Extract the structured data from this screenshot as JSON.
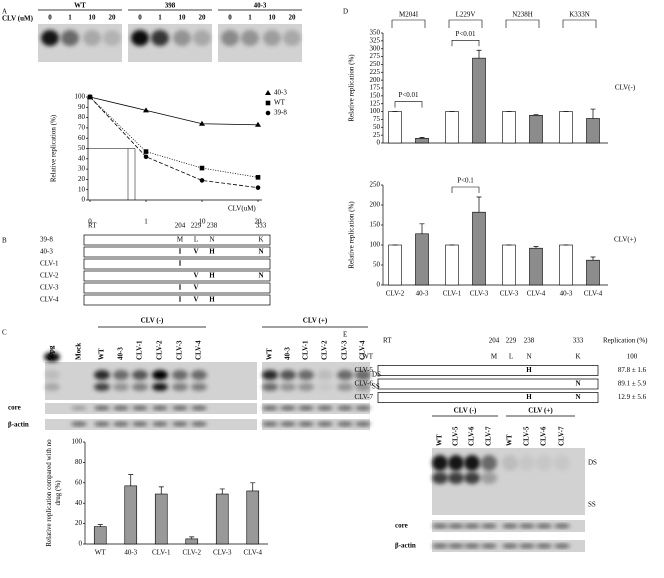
{
  "panel_labels": [
    "A",
    "B",
    "C",
    "D",
    "E"
  ],
  "blot_A": {
    "axis_label": "CLV (uM)",
    "groups": [
      {
        "name": "WT",
        "lanes": [
          "0",
          "1",
          "10",
          "20"
        ]
      },
      {
        "name": "398",
        "lanes": [
          "0",
          "1",
          "10",
          "20"
        ]
      },
      {
        "name": "40-3",
        "lanes": [
          "0",
          "1",
          "10",
          "20"
        ]
      }
    ]
  },
  "schematic_B": {
    "header": [
      "RT",
      "204",
      "229",
      "238",
      "333"
    ],
    "rows": [
      {
        "name": "39-8",
        "residues": [
          "M",
          "L",
          "N",
          "K"
        ]
      },
      {
        "name": "40-3",
        "residues": [
          "I",
          "V",
          "H",
          "N"
        ]
      },
      {
        "name": "CLV-1",
        "residues": [
          "I",
          null,
          null,
          null
        ]
      },
      {
        "name": "CLV-2",
        "residues": [
          null,
          "V",
          "H",
          "N"
        ]
      },
      {
        "name": "CLV-3",
        "residues": [
          "I",
          "V",
          null,
          null
        ]
      },
      {
        "name": "CLV-4",
        "residues": [
          "I",
          "V",
          "H",
          null
        ]
      }
    ]
  },
  "blot_C": {
    "lanes": [
      "50pg",
      "Mock"
    ],
    "groups": [
      {
        "name": "CLV (-)",
        "lanes": [
          "WT",
          "40-3",
          "CLV-1",
          "CLV-2",
          "CLV-3",
          "CLV-4"
        ]
      },
      {
        "name": "CLV (+)",
        "lanes": [
          "WT",
          "40-3",
          "CLV-1",
          "CLV-2",
          "CLV-3",
          "CLV-4"
        ]
      }
    ],
    "bands": [
      "DS",
      "SS"
    ],
    "loading": [
      "core",
      "β-actin"
    ]
  },
  "schematic_E": {
    "header": [
      "RT",
      "204",
      "229",
      "238",
      "333"
    ],
    "replication_header": "Replication (%)",
    "rows": [
      {
        "name": "WT",
        "residues": [
          "M",
          "L",
          "N",
          "K"
        ],
        "replication": 100
      },
      {
        "name": "CLV-5",
        "residues": [
          null,
          null,
          "H",
          null
        ],
        "replication": "87.8 ± 1.6"
      },
      {
        "name": "CLV-6",
        "residues": [
          null,
          null,
          null,
          "N"
        ],
        "replication": "89.1 ± 5.9"
      },
      {
        "name": "CLV-7",
        "residues": [
          null,
          null,
          "H",
          "N"
        ],
        "replication": "12.9 ± 5.6"
      }
    ]
  },
  "blot_E": {
    "groups": [
      {
        "name": "CLV (-)",
        "lanes": [
          "WT",
          "CLV-5",
          "CLV-6",
          "CLV-7"
        ]
      },
      {
        "name": "CLV (+)",
        "lanes": [
          "WT",
          "CLV-5",
          "CLV-6",
          "CLV-7"
        ]
      }
    ],
    "bands": [
      "DS",
      "SS"
    ],
    "loading": [
      "core",
      "β-actin"
    ]
  },
  "chart_data": [
    {
      "type": "line",
      "ylabel": "Relative replication (%)",
      "xlabel": "CLV(uM)",
      "categories": [
        "0",
        "1",
        "10",
        "20"
      ],
      "ylim": [
        0,
        100
      ],
      "yticks": [
        0,
        10,
        20,
        30,
        40,
        50,
        60,
        70,
        80,
        90,
        100
      ],
      "legend": "right",
      "series": [
        {
          "name": "40-3",
          "color": "#000000",
          "marker": "triangle",
          "dash": "solid",
          "values": [
            100,
            87,
            74,
            73
          ]
        },
        {
          "name": "WT",
          "color": "#000000",
          "marker": "square",
          "dash": "dotted",
          "values": [
            100,
            47,
            31,
            22
          ]
        },
        {
          "name": "39-8",
          "color": "#000000",
          "marker": "circle",
          "dash": "dashed",
          "values": [
            100,
            42,
            19,
            12
          ]
        }
      ]
    },
    {
      "type": "bar",
      "ylabel": "Relative replication compared with no drug (%)",
      "categories": [
        "WT",
        "40-3",
        "CLV-1",
        "CLV-2",
        "CLV-3",
        "CLV-4"
      ],
      "values": [
        17,
        57,
        49,
        5,
        49,
        52
      ],
      "errors": [
        2,
        11,
        7,
        2,
        5,
        8
      ],
      "color": "#999999",
      "ylim": [
        0,
        100
      ],
      "yticks": [
        0,
        20,
        40,
        60,
        80,
        100
      ]
    },
    {
      "type": "bar",
      "ylabel": "Relative replication (%)",
      "label": "CLV(-)",
      "group_labels": [
        "M204I",
        "L229V",
        "N238H",
        "K333N"
      ],
      "annotations": [
        "P<0.01",
        "P<0.01"
      ],
      "values": [
        100,
        15,
        100,
        270,
        100,
        88,
        100,
        78
      ],
      "errors": [
        0,
        3,
        0,
        25,
        0,
        2,
        0,
        30
      ],
      "colors": [
        "#ffffff",
        "#8c8c8c",
        "#ffffff",
        "#8c8c8c",
        "#ffffff",
        "#8c8c8c",
        "#ffffff",
        "#8c8c8c"
      ],
      "ylim": [
        0,
        350
      ],
      "yticks": [
        0,
        25,
        50,
        75,
        100,
        125,
        150,
        175,
        200,
        225,
        250,
        275,
        300,
        325,
        350
      ]
    },
    {
      "type": "bar",
      "ylabel": "Relative replication (%)",
      "label": "CLV(+)",
      "annotations": [
        "P<0.1"
      ],
      "categories": [
        "CLV-2",
        "40-3",
        "CLV-1",
        "CLV-3",
        "CLV-3",
        "CLV-4",
        "40-3",
        "CLV-4"
      ],
      "values": [
        100,
        128,
        100,
        182,
        100,
        92,
        100,
        62
      ],
      "errors": [
        0,
        25,
        0,
        38,
        0,
        4,
        0,
        8
      ],
      "colors": [
        "#ffffff",
        "#8c8c8c",
        "#ffffff",
        "#8c8c8c",
        "#ffffff",
        "#8c8c8c",
        "#ffffff",
        "#8c8c8c"
      ],
      "ylim": [
        0,
        250
      ],
      "yticks": [
        0,
        50,
        100,
        150,
        200,
        250
      ]
    }
  ]
}
